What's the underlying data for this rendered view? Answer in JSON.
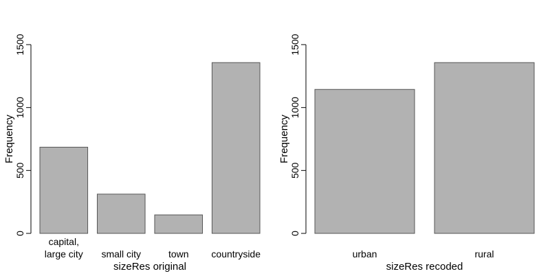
{
  "chart_data": [
    {
      "type": "bar",
      "categories": [
        [
          "capital,",
          "large city"
        ],
        [
          "small city"
        ],
        [
          "town"
        ],
        [
          "countryside"
        ]
      ],
      "values": [
        685,
        312,
        147,
        1357
      ],
      "xlabel": "sizeRes original",
      "ylabel": "Frequency",
      "ylim": [
        0,
        1500
      ],
      "yticks": [
        0,
        500,
        1000,
        1500
      ],
      "bar_color": "#b2b2b2",
      "bar_border_color": "#555555",
      "grid": false
    },
    {
      "type": "bar",
      "categories": [
        [
          "urban"
        ],
        [
          "rural"
        ]
      ],
      "values": [
        1144,
        1357
      ],
      "xlabel": "sizeRes recoded",
      "ylabel": "Frequency",
      "ylim": [
        0,
        1500
      ],
      "yticks": [
        0,
        500,
        1000,
        1500
      ],
      "bar_color": "#b2b2b2",
      "bar_border_color": "#555555",
      "grid": false
    }
  ]
}
